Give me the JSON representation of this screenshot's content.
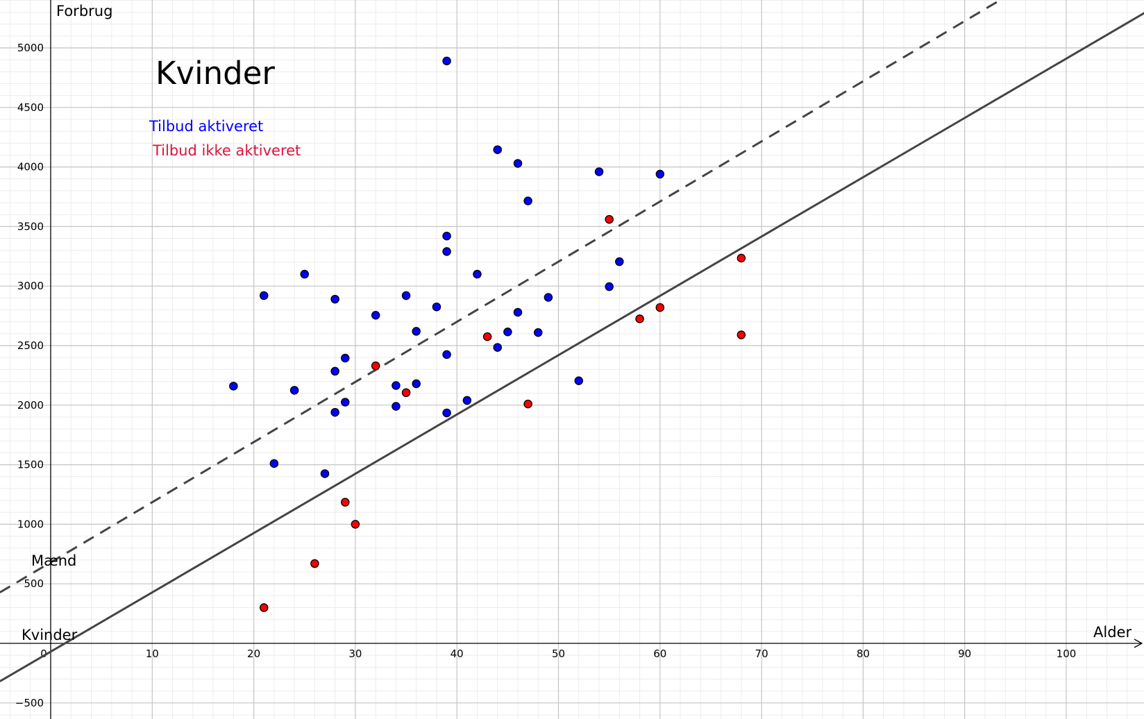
{
  "chart_data": {
    "type": "scatter",
    "title": "Kvinder",
    "xlabel": "Alder",
    "ylabel": "Forbrug",
    "xlim": [
      -5,
      108
    ],
    "ylim": [
      -630,
      5430
    ],
    "x_ticks": [
      0,
      10,
      20,
      30,
      40,
      50,
      60,
      70,
      80,
      90,
      100
    ],
    "y_ticks": [
      -500,
      500,
      1000,
      1500,
      2000,
      2500,
      3000,
      3500,
      4000,
      4500,
      5000
    ],
    "x_tick_labels": [
      "0",
      "10",
      "20",
      "30",
      "40",
      "50",
      "60",
      "70",
      "80",
      "90",
      "100"
    ],
    "y_tick_labels": [
      "−500",
      "500",
      "1000",
      "1500",
      "2000",
      "2500",
      "3000",
      "3500",
      "4000",
      "4500",
      "5000"
    ],
    "grid": true,
    "legend_position": "top-left",
    "series": [
      {
        "name": "Tilbud aktiveret",
        "color": "#0000ff",
        "points": [
          [
            18,
            2160
          ],
          [
            21,
            2920
          ],
          [
            22,
            1510
          ],
          [
            24,
            2125
          ],
          [
            25,
            3100
          ],
          [
            27,
            1425
          ],
          [
            28,
            2890
          ],
          [
            28,
            2285
          ],
          [
            28,
            1940
          ],
          [
            29,
            2395
          ],
          [
            29,
            2025
          ],
          [
            32,
            2755
          ],
          [
            34,
            2165
          ],
          [
            34,
            1990
          ],
          [
            35,
            2920
          ],
          [
            36,
            2620
          ],
          [
            36,
            2180
          ],
          [
            38,
            2825
          ],
          [
            39,
            4890
          ],
          [
            39,
            3420
          ],
          [
            39,
            3290
          ],
          [
            39,
            2425
          ],
          [
            39,
            1935
          ],
          [
            41,
            2040
          ],
          [
            42,
            3100
          ],
          [
            44,
            4145
          ],
          [
            44,
            2485
          ],
          [
            45,
            2615
          ],
          [
            46,
            4030
          ],
          [
            46,
            2780
          ],
          [
            47,
            3715
          ],
          [
            48,
            2610
          ],
          [
            49,
            2905
          ],
          [
            52,
            2205
          ],
          [
            54,
            3960
          ],
          [
            55,
            2995
          ],
          [
            56,
            3205
          ],
          [
            60,
            3940
          ]
        ]
      },
      {
        "name": "Tilbud ikke aktiveret",
        "color": "#ff0000",
        "points": [
          [
            21,
            300
          ],
          [
            26,
            670
          ],
          [
            29,
            1185
          ],
          [
            30,
            1000
          ],
          [
            32,
            2330
          ],
          [
            35,
            2105
          ],
          [
            43,
            2575
          ],
          [
            47,
            2010
          ],
          [
            55,
            3560
          ],
          [
            58,
            2725
          ],
          [
            60,
            2820
          ],
          [
            68,
            3235
          ],
          [
            68,
            2590
          ]
        ]
      }
    ],
    "lines": [
      {
        "name": "Mænd",
        "style": "dashed",
        "intercept": 680,
        "slope": 50.5
      },
      {
        "name": "Kvinder",
        "style": "solid",
        "intercept": -70,
        "slope": 49.8
      }
    ]
  }
}
